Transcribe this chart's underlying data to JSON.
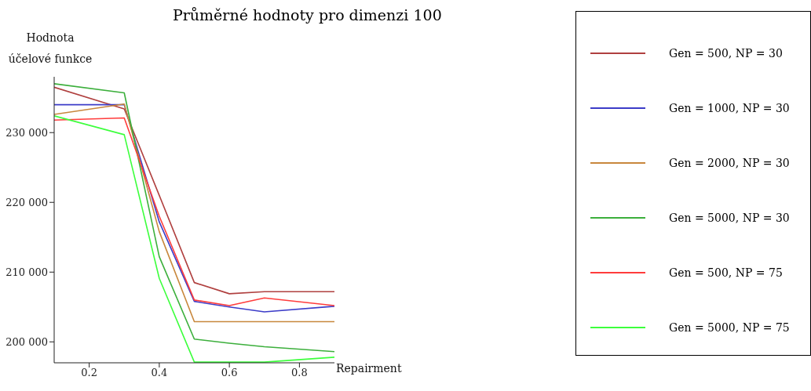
{
  "chart_data": {
    "type": "line",
    "title": "Průměrné hodnoty pro dimenzi 100",
    "xlabel": "Repairment",
    "ylabel": "Hodnota účelové funkce",
    "x": [
      0.1,
      0.3,
      0.4,
      0.5,
      0.6,
      0.7,
      0.9
    ],
    "series": [
      {
        "name": "Gen = 500, NP = 30",
        "color": "#b0403f",
        "values": [
          236500,
          233400,
          221000,
          208500,
          206900,
          207200,
          207200
        ]
      },
      {
        "name": "Gen = 1000, NP = 30",
        "color": "#3c3cc8",
        "values": [
          234000,
          234000,
          217200,
          205800,
          205000,
          204300,
          205100
        ]
      },
      {
        "name": "Gen = 2000, NP = 30",
        "color": "#c8873c",
        "values": [
          232600,
          234100,
          215800,
          202900,
          202900,
          202900,
          202900
        ]
      },
      {
        "name": "Gen = 5000, NP = 30",
        "color": "#3caf3c",
        "values": [
          237000,
          235700,
          212200,
          200400,
          199800,
          199300,
          198600
        ]
      },
      {
        "name": "Gen = 500, NP = 75",
        "color": "#ff3c3c",
        "values": [
          231800,
          232100,
          218000,
          206000,
          205200,
          206300,
          205200
        ]
      },
      {
        "name": "Gen = 5000, NP = 75",
        "color": "#3cff3c",
        "values": [
          232400,
          229700,
          209100,
          197100,
          197100,
          197100,
          197800
        ]
      }
    ],
    "xlim": [
      0.1,
      0.9
    ],
    "xticks": [
      0.2,
      0.4,
      0.6,
      0.8
    ],
    "ylim": [
      197000,
      238000
    ],
    "yticks": [
      200000,
      210000,
      220000,
      230000
    ],
    "grid": false,
    "legend": "right",
    "marker": "none",
    "line_style": "solid"
  }
}
